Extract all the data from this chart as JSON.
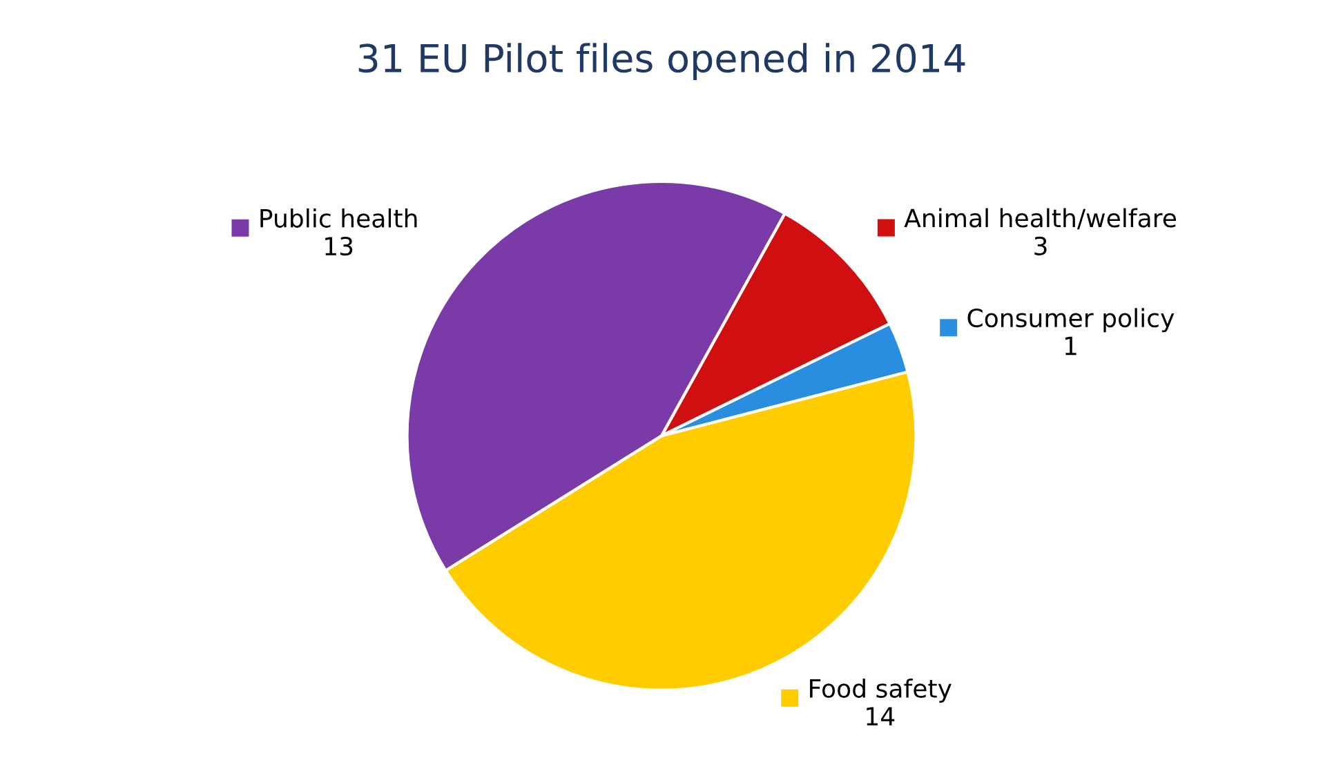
{
  "chart_data": {
    "type": "pie",
    "title": "31 EU Pilot files opened in 2014",
    "categories": [
      "Animal health/welfare",
      "Consumer policy",
      "Food safety",
      "Public health"
    ],
    "values": [
      3,
      1,
      14,
      13
    ],
    "colors": [
      "#d01010",
      "#2a8ee0",
      "#ffcc00",
      "#7a3aa8"
    ],
    "data_labels": true,
    "legend": "right"
  }
}
